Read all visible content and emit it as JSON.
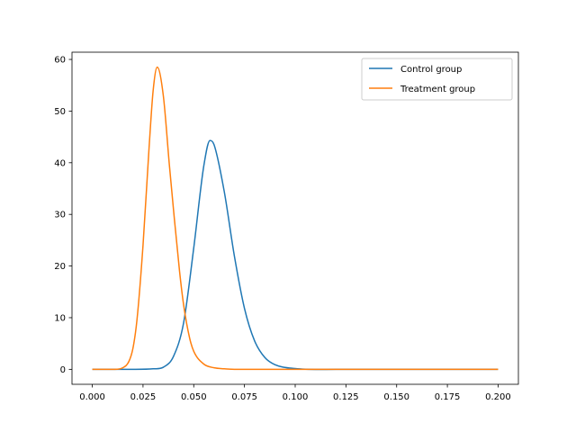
{
  "chart_data": {
    "type": "line",
    "title": "",
    "xlabel": "",
    "ylabel": "",
    "xlim": [
      -0.01,
      0.21
    ],
    "ylim": [
      -2.9,
      61.4
    ],
    "xticks": [
      0.0,
      0.025,
      0.05,
      0.075,
      0.1,
      0.125,
      0.15,
      0.175,
      0.2
    ],
    "xtick_labels": [
      "0.000",
      "0.025",
      "0.050",
      "0.075",
      "0.100",
      "0.125",
      "0.150",
      "0.175",
      "0.200"
    ],
    "yticks": [
      0,
      10,
      20,
      30,
      40,
      50,
      60
    ],
    "ytick_labels": [
      "0",
      "10",
      "20",
      "30",
      "40",
      "50",
      "60"
    ],
    "grid": false,
    "legend_position": "top-right",
    "series": [
      {
        "name": "Control group",
        "color": "#1f77b4",
        "x": [
          0.0,
          0.02,
          0.03,
          0.035,
          0.04,
          0.045,
          0.05,
          0.055,
          0.058,
          0.06,
          0.065,
          0.07,
          0.075,
          0.08,
          0.085,
          0.09,
          0.1,
          0.12,
          0.15,
          0.2
        ],
        "y": [
          0.0,
          0.0,
          0.1,
          0.4,
          2.5,
          9.0,
          23.5,
          39.5,
          44.3,
          43.5,
          34.5,
          22.0,
          11.8,
          5.5,
          2.3,
          0.9,
          0.15,
          0.0,
          0.0,
          0.0
        ]
      },
      {
        "name": "Treatment group",
        "color": "#ff7f0e",
        "x": [
          0.0,
          0.01,
          0.015,
          0.018,
          0.02,
          0.022,
          0.025,
          0.028,
          0.03,
          0.032,
          0.035,
          0.038,
          0.04,
          0.043,
          0.045,
          0.048,
          0.05,
          0.055,
          0.06,
          0.065,
          0.07,
          0.08,
          0.1,
          0.15,
          0.2
        ],
        "y": [
          0.0,
          0.0,
          0.3,
          1.5,
          4.0,
          9.5,
          24.0,
          43.0,
          54.0,
          58.5,
          53.0,
          39.5,
          31.0,
          19.0,
          12.5,
          6.0,
          3.5,
          1.0,
          0.3,
          0.1,
          0.0,
          0.0,
          0.0,
          0.0,
          0.0
        ]
      }
    ]
  }
}
